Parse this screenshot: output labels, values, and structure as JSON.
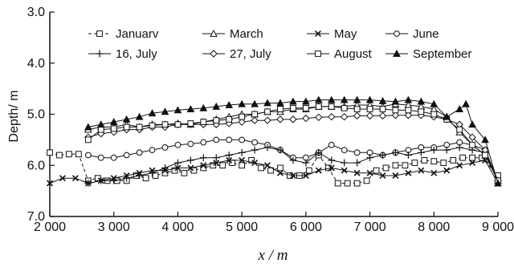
{
  "chart_data": {
    "type": "line",
    "xlabel": "x / m",
    "ylabel": "Depth/ m",
    "xlim": [
      2000,
      9000
    ],
    "ylim": [
      3.0,
      7.0
    ],
    "y_inverted": true,
    "xticks": [
      2000,
      3000,
      4000,
      5000,
      6000,
      7000,
      8000,
      9000
    ],
    "xtick_labels": [
      "2 000",
      "3 000",
      "4 000",
      "5 000",
      "6 000",
      "7 000",
      "8 000",
      "9 000"
    ],
    "yticks": [
      3.0,
      4.0,
      5.0,
      6.0,
      7.0
    ],
    "ytick_labels": [
      "3.0",
      "4.0",
      "5.0",
      "6.0",
      "7.0"
    ],
    "grid": false,
    "legend_position": "top",
    "series": [
      {
        "name": "Januarv",
        "marker": "open-square",
        "dashed": true,
        "points": [
          [
            2000,
            5.75
          ],
          [
            2150,
            5.8
          ],
          [
            2300,
            5.78
          ],
          [
            2450,
            5.78
          ],
          [
            2600,
            6.3
          ],
          [
            2750,
            6.25
          ],
          [
            2900,
            6.3
          ],
          [
            3050,
            6.3
          ],
          [
            3200,
            6.3
          ],
          [
            3350,
            6.2
          ],
          [
            3500,
            6.25
          ],
          [
            3650,
            6.2
          ],
          [
            3800,
            6.15
          ],
          [
            3950,
            6.1
          ],
          [
            4100,
            6.15
          ],
          [
            4250,
            6.1
          ],
          [
            4400,
            6.05
          ],
          [
            4550,
            6.0
          ],
          [
            4700,
            6.0
          ],
          [
            4850,
            5.95
          ],
          [
            5000,
            6.0
          ],
          [
            5150,
            5.9
          ],
          [
            5300,
            6.05
          ],
          [
            5450,
            6.1
          ],
          [
            5600,
            6.05
          ],
          [
            5750,
            6.2
          ],
          [
            5900,
            6.2
          ],
          [
            6050,
            6.1
          ],
          [
            6200,
            5.8
          ],
          [
            6350,
            6.05
          ],
          [
            6500,
            6.35
          ],
          [
            6650,
            6.35
          ],
          [
            6800,
            6.35
          ],
          [
            6950,
            6.3
          ],
          [
            7100,
            6.1
          ],
          [
            7250,
            6.05
          ],
          [
            7400,
            6.0
          ],
          [
            7550,
            6.0
          ],
          [
            7700,
            5.95
          ],
          [
            7850,
            5.9
          ],
          [
            8000,
            5.92
          ],
          [
            8150,
            5.95
          ],
          [
            8300,
            5.9
          ],
          [
            8450,
            5.85
          ],
          [
            8600,
            5.85
          ],
          [
            8750,
            5.85
          ],
          [
            9000,
            6.2
          ]
        ]
      },
      {
        "name": "March",
        "marker": "open-triangle",
        "dashed": false,
        "points": [
          [
            2600,
            5.3
          ],
          [
            2800,
            5.25
          ],
          [
            3000,
            5.25
          ],
          [
            3200,
            5.2
          ],
          [
            3400,
            5.25
          ],
          [
            3600,
            5.2
          ],
          [
            3800,
            5.2
          ],
          [
            4000,
            5.18
          ],
          [
            4200,
            5.2
          ],
          [
            4400,
            5.15
          ],
          [
            4600,
            5.1
          ],
          [
            4800,
            5.05
          ],
          [
            5000,
            5.0
          ],
          [
            5200,
            5.0
          ],
          [
            5400,
            4.95
          ],
          [
            5600,
            4.95
          ],
          [
            5800,
            4.9
          ],
          [
            6000,
            4.9
          ],
          [
            6200,
            4.85
          ],
          [
            6400,
            4.85
          ],
          [
            6600,
            4.85
          ],
          [
            6800,
            4.82
          ],
          [
            7000,
            4.82
          ],
          [
            7200,
            4.85
          ],
          [
            7400,
            4.8
          ],
          [
            7600,
            4.82
          ],
          [
            7800,
            4.85
          ],
          [
            8000,
            4.9
          ],
          [
            8200,
            5.05
          ],
          [
            8400,
            5.35
          ],
          [
            8600,
            5.6
          ],
          [
            8800,
            5.8
          ],
          [
            9000,
            6.3
          ]
        ]
      },
      {
        "name": "May",
        "marker": "x",
        "dashed": false,
        "points": [
          [
            2000,
            6.35
          ],
          [
            2200,
            6.25
          ],
          [
            2400,
            6.25
          ],
          [
            2600,
            6.35
          ],
          [
            2800,
            6.3
          ],
          [
            3000,
            6.25
          ],
          [
            3200,
            6.2
          ],
          [
            3400,
            6.15
          ],
          [
            3600,
            6.1
          ],
          [
            3800,
            6.1
          ],
          [
            4000,
            6.05
          ],
          [
            4200,
            6.05
          ],
          [
            4400,
            6.0
          ],
          [
            4600,
            5.95
          ],
          [
            4800,
            5.9
          ],
          [
            5000,
            5.9
          ],
          [
            5200,
            5.95
          ],
          [
            5400,
            6.0
          ],
          [
            5600,
            6.15
          ],
          [
            5800,
            6.2
          ],
          [
            6000,
            6.2
          ],
          [
            6200,
            6.1
          ],
          [
            6400,
            6.05
          ],
          [
            6600,
            6.1
          ],
          [
            6800,
            6.15
          ],
          [
            7000,
            6.15
          ],
          [
            7200,
            6.2
          ],
          [
            7400,
            6.2
          ],
          [
            7600,
            6.15
          ],
          [
            7800,
            6.1
          ],
          [
            8000,
            6.15
          ],
          [
            8200,
            6.1
          ],
          [
            8400,
            6.0
          ],
          [
            8600,
            5.95
          ],
          [
            8800,
            5.9
          ],
          [
            9000,
            6.35
          ]
        ]
      },
      {
        "name": "June",
        "marker": "open-circle",
        "dashed": false,
        "points": [
          [
            2600,
            5.8
          ],
          [
            2800,
            5.85
          ],
          [
            3000,
            5.85
          ],
          [
            3200,
            5.8
          ],
          [
            3400,
            5.75
          ],
          [
            3600,
            5.7
          ],
          [
            3800,
            5.65
          ],
          [
            4000,
            5.6
          ],
          [
            4200,
            5.58
          ],
          [
            4400,
            5.55
          ],
          [
            4600,
            5.5
          ],
          [
            4800,
            5.5
          ],
          [
            5000,
            5.5
          ],
          [
            5200,
            5.55
          ],
          [
            5400,
            5.6
          ],
          [
            5600,
            5.7
          ],
          [
            5800,
            5.85
          ],
          [
            6000,
            5.85
          ],
          [
            6200,
            5.75
          ],
          [
            6400,
            5.6
          ],
          [
            6600,
            5.7
          ],
          [
            6800,
            5.75
          ],
          [
            7000,
            5.75
          ],
          [
            7200,
            5.8
          ],
          [
            7400,
            5.75
          ],
          [
            7600,
            5.7
          ],
          [
            7800,
            5.65
          ],
          [
            8000,
            5.65
          ],
          [
            8200,
            5.6
          ],
          [
            8400,
            5.55
          ],
          [
            8600,
            5.6
          ],
          [
            8800,
            5.7
          ],
          [
            9000,
            6.3
          ]
        ]
      },
      {
        "name": "16, July",
        "marker": "plus",
        "dashed": false,
        "points": [
          [
            2600,
            6.35
          ],
          [
            2800,
            6.3
          ],
          [
            3000,
            6.3
          ],
          [
            3200,
            6.25
          ],
          [
            3400,
            6.2
          ],
          [
            3600,
            6.15
          ],
          [
            3800,
            6.05
          ],
          [
            4000,
            5.95
          ],
          [
            4200,
            5.9
          ],
          [
            4400,
            5.85
          ],
          [
            4600,
            5.85
          ],
          [
            4800,
            5.8
          ],
          [
            5000,
            5.75
          ],
          [
            5200,
            5.7
          ],
          [
            5400,
            5.65
          ],
          [
            5600,
            5.7
          ],
          [
            5800,
            5.9
          ],
          [
            6000,
            5.95
          ],
          [
            6200,
            5.75
          ],
          [
            6400,
            5.9
          ],
          [
            6600,
            5.95
          ],
          [
            6800,
            5.95
          ],
          [
            7000,
            5.85
          ],
          [
            7200,
            5.8
          ],
          [
            7400,
            5.75
          ],
          [
            7600,
            5.8
          ],
          [
            7800,
            5.75
          ],
          [
            8000,
            5.7
          ],
          [
            8200,
            5.7
          ],
          [
            8400,
            5.65
          ],
          [
            8600,
            5.7
          ],
          [
            8800,
            5.75
          ],
          [
            9000,
            6.3
          ]
        ]
      },
      {
        "name": "27, July",
        "marker": "open-diamond",
        "dashed": false,
        "points": [
          [
            2600,
            5.45
          ],
          [
            2800,
            5.38
          ],
          [
            3000,
            5.35
          ],
          [
            3200,
            5.3
          ],
          [
            3400,
            5.3
          ],
          [
            3600,
            5.25
          ],
          [
            3800,
            5.25
          ],
          [
            4000,
            5.2
          ],
          [
            4200,
            5.2
          ],
          [
            4400,
            5.2
          ],
          [
            4600,
            5.2
          ],
          [
            4800,
            5.18
          ],
          [
            5000,
            5.15
          ],
          [
            5200,
            5.12
          ],
          [
            5400,
            5.12
          ],
          [
            5600,
            5.1
          ],
          [
            5800,
            5.1
          ],
          [
            6000,
            5.08
          ],
          [
            6200,
            5.06
          ],
          [
            6400,
            5.05
          ],
          [
            6600,
            5.05
          ],
          [
            6800,
            5.03
          ],
          [
            7000,
            5.03
          ],
          [
            7200,
            5.03
          ],
          [
            7400,
            5.02
          ],
          [
            7600,
            5.02
          ],
          [
            7800,
            5.02
          ],
          [
            8000,
            5.05
          ],
          [
            8200,
            5.1
          ],
          [
            8400,
            5.2
          ],
          [
            8600,
            5.45
          ],
          [
            8800,
            5.7
          ],
          [
            9000,
            6.3
          ]
        ]
      },
      {
        "name": "August",
        "marker": "open-square",
        "dashed": false,
        "points": [
          [
            2600,
            5.5
          ],
          [
            2800,
            5.3
          ],
          [
            3000,
            5.28
          ],
          [
            3200,
            5.25
          ],
          [
            3400,
            5.25
          ],
          [
            3600,
            5.22
          ],
          [
            3800,
            5.2
          ],
          [
            4000,
            5.2
          ],
          [
            4200,
            5.18
          ],
          [
            4400,
            5.15
          ],
          [
            4600,
            5.12
          ],
          [
            4800,
            5.1
          ],
          [
            5000,
            5.05
          ],
          [
            5200,
            5.0
          ],
          [
            5400,
            4.95
          ],
          [
            5600,
            4.9
          ],
          [
            5800,
            4.88
          ],
          [
            6000,
            4.88
          ],
          [
            6200,
            4.85
          ],
          [
            6400,
            4.85
          ],
          [
            6600,
            4.88
          ],
          [
            6800,
            4.9
          ],
          [
            7000,
            4.9
          ],
          [
            7200,
            4.9
          ],
          [
            7400,
            4.92
          ],
          [
            7600,
            4.92
          ],
          [
            7800,
            4.95
          ],
          [
            8000,
            5.0
          ],
          [
            8200,
            5.1
          ],
          [
            8400,
            5.3
          ],
          [
            8600,
            5.6
          ],
          [
            8800,
            5.8
          ],
          [
            9000,
            6.3
          ]
        ]
      },
      {
        "name": "September",
        "marker": "filled-triangle",
        "dashed": false,
        "points": [
          [
            2600,
            5.25
          ],
          [
            2800,
            5.2
          ],
          [
            3000,
            5.15
          ],
          [
            3200,
            5.1
          ],
          [
            3400,
            5.05
          ],
          [
            3600,
            4.98
          ],
          [
            3800,
            4.95
          ],
          [
            4000,
            4.92
          ],
          [
            4200,
            4.9
          ],
          [
            4400,
            4.88
          ],
          [
            4600,
            4.85
          ],
          [
            4800,
            4.82
          ],
          [
            5000,
            4.8
          ],
          [
            5200,
            4.8
          ],
          [
            5400,
            4.78
          ],
          [
            5600,
            4.78
          ],
          [
            5800,
            4.75
          ],
          [
            6000,
            4.75
          ],
          [
            6200,
            4.72
          ],
          [
            6400,
            4.72
          ],
          [
            6600,
            4.72
          ],
          [
            6800,
            4.72
          ],
          [
            7000,
            4.72
          ],
          [
            7200,
            4.74
          ],
          [
            7400,
            4.75
          ],
          [
            7600,
            4.72
          ],
          [
            7800,
            4.75
          ],
          [
            8000,
            4.8
          ],
          [
            8200,
            5.05
          ],
          [
            8400,
            4.9
          ],
          [
            8500,
            4.8
          ],
          [
            8600,
            5.2
          ],
          [
            8800,
            5.5
          ],
          [
            9000,
            6.35
          ]
        ]
      }
    ]
  }
}
